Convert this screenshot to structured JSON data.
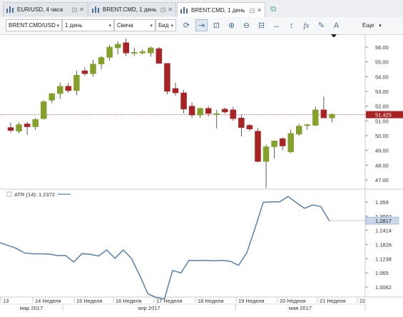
{
  "tabs": [
    {
      "label": "EUR/USD, 4 часа",
      "active": false
    },
    {
      "label": "BRENT.CMD, 1 день",
      "active": false
    },
    {
      "label": "BRENT.CMD, 1 день",
      "active": true
    }
  ],
  "toolbar": {
    "instrument": "BRENT.CMD/USD",
    "period": "1 день",
    "chart_type": "Свеча",
    "offer_side": "Бид",
    "more_label": "Еще"
  },
  "icons": [
    "refresh-icon",
    "arrow-right-icon",
    "zoom-fit-icon",
    "zoom-in-icon",
    "zoom-out-icon",
    "zoom-box-icon",
    "h-stretch-icon",
    "v-stretch-icon",
    "fx-icon",
    "pencil-icon",
    "text-icon"
  ],
  "chart_data": {
    "type": "candlestick",
    "colors": {
      "up": "#84a22b",
      "down": "#a82324",
      "atr": "#5980aa",
      "price_line": "#a82324"
    },
    "price_ticks": [
      "56.00",
      "55.00",
      "54.00",
      "53.00",
      "52.00",
      "51.00",
      "50.00",
      "49.00",
      "48.00",
      "47.00"
    ],
    "current_price": "51.425",
    "candles": [
      {
        "o": 50.55,
        "h": 50.9,
        "l": 50.2,
        "c": 50.35
      },
      {
        "o": 50.3,
        "h": 50.9,
        "l": 50.15,
        "c": 50.75
      },
      {
        "o": 50.8,
        "h": 50.95,
        "l": 50.05,
        "c": 50.6
      },
      {
        "o": 50.6,
        "h": 51.2,
        "l": 50.4,
        "c": 51.1
      },
      {
        "o": 51.15,
        "h": 52.4,
        "l": 51.1,
        "c": 52.3
      },
      {
        "o": 52.4,
        "h": 52.9,
        "l": 52.2,
        "c": 52.85
      },
      {
        "o": 52.85,
        "h": 53.6,
        "l": 52.5,
        "c": 53.35
      },
      {
        "o": 53.35,
        "h": 53.6,
        "l": 52.9,
        "c": 53.05
      },
      {
        "o": 53.05,
        "h": 54.4,
        "l": 52.75,
        "c": 54.1
      },
      {
        "o": 54.4,
        "h": 54.6,
        "l": 54.05,
        "c": 54.2
      },
      {
        "o": 54.2,
        "h": 55.15,
        "l": 54.0,
        "c": 54.85
      },
      {
        "o": 54.85,
        "h": 55.4,
        "l": 54.5,
        "c": 55.3
      },
      {
        "o": 55.3,
        "h": 56.15,
        "l": 55.1,
        "c": 56.0
      },
      {
        "o": 55.95,
        "h": 56.4,
        "l": 55.5,
        "c": 56.2
      },
      {
        "o": 56.3,
        "h": 56.6,
        "l": 55.4,
        "c": 55.6
      },
      {
        "o": 55.6,
        "h": 55.95,
        "l": 55.4,
        "c": 55.65
      },
      {
        "o": 55.6,
        "h": 55.85,
        "l": 55.5,
        "c": 55.7
      },
      {
        "o": 55.6,
        "h": 56.05,
        "l": 55.35,
        "c": 55.95
      },
      {
        "o": 55.9,
        "h": 56.0,
        "l": 54.9,
        "c": 54.9
      },
      {
        "o": 54.9,
        "h": 54.9,
        "l": 52.8,
        "c": 53.0
      },
      {
        "o": 53.2,
        "h": 53.6,
        "l": 52.7,
        "c": 52.9
      },
      {
        "o": 52.9,
        "h": 53.1,
        "l": 51.5,
        "c": 51.8
      },
      {
        "o": 52.0,
        "h": 52.25,
        "l": 51.2,
        "c": 51.4
      },
      {
        "o": 51.4,
        "h": 51.9,
        "l": 51.2,
        "c": 51.85
      },
      {
        "o": 51.85,
        "h": 52.0,
        "l": 51.3,
        "c": 51.5
      },
      {
        "o": 51.5,
        "h": 51.75,
        "l": 50.5,
        "c": 51.5
      },
      {
        "o": 51.8,
        "h": 51.9,
        "l": 51.5,
        "c": 51.6
      },
      {
        "o": 51.75,
        "h": 51.95,
        "l": 51.0,
        "c": 51.15
      },
      {
        "o": 51.2,
        "h": 51.4,
        "l": 49.95,
        "c": 50.55
      },
      {
        "o": 50.7,
        "h": 50.8,
        "l": 50.3,
        "c": 50.45
      },
      {
        "o": 50.3,
        "h": 50.5,
        "l": 48.2,
        "c": 48.25
      },
      {
        "o": 48.25,
        "h": 49.4,
        "l": 46.45,
        "c": 49.25
      },
      {
        "o": 49.25,
        "h": 49.65,
        "l": 48.45,
        "c": 49.65
      },
      {
        "o": 49.8,
        "h": 49.9,
        "l": 49.0,
        "c": 49.3
      },
      {
        "o": 48.9,
        "h": 50.4,
        "l": 48.8,
        "c": 50.15
      },
      {
        "o": 50.1,
        "h": 50.8,
        "l": 50.0,
        "c": 50.65
      },
      {
        "o": 50.75,
        "h": 50.8,
        "l": 50.4,
        "c": 50.75
      },
      {
        "o": 50.7,
        "h": 51.95,
        "l": 50.65,
        "c": 51.75
      },
      {
        "o": 51.75,
        "h": 52.65,
        "l": 51.25,
        "c": 51.2
      },
      {
        "o": 51.2,
        "h": 51.5,
        "l": 50.9,
        "c": 51.45
      }
    ],
    "indicator": {
      "label": "ATR (14): 1.2372",
      "ticks": [
        "1.359",
        "1.3002",
        "1.2817",
        "1.2414",
        "1.1826",
        "1.1238",
        "1.065",
        "1.0062"
      ],
      "current": "1.2817",
      "values": [
        1.19,
        1.167,
        1.148,
        1.144,
        1.144,
        1.143,
        1.137,
        1.137,
        1.11,
        1.145,
        1.142,
        1.135,
        1.16,
        1.125,
        1.16,
        1.125,
        1.055,
        0.978,
        0.963,
        0.957,
        1.075,
        1.065,
        1.117,
        1.116,
        1.117,
        1.115,
        1.117,
        1.113,
        1.096,
        1.148,
        1.25,
        1.358,
        1.36,
        1.36,
        1.382,
        1.357,
        1.333,
        1.347,
        1.34,
        1.282
      ]
    },
    "x_week_labels": [
      "13",
      "14 Неделя",
      "15 Неделя",
      "16 Неделя",
      "17 Неделя",
      "18 Неделя",
      "19 Неделя",
      "20 Неделя",
      "21 Неделя",
      "22"
    ],
    "x_month_labels": [
      "мар 2017",
      "апр 2017",
      "мая 2017"
    ]
  }
}
